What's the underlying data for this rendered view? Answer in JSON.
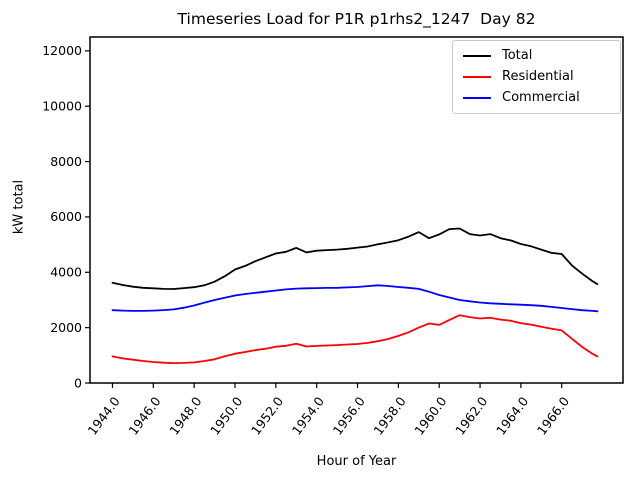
{
  "chart_data": {
    "type": "line",
    "title": "Timeseries Load for P1R p1rhs2_1247  Day 82",
    "xlabel": "Hour of Year",
    "ylabel": "kW total",
    "legend_position": "upper right",
    "grid": false,
    "xlim": [
      1942.9,
      1969.0
    ],
    "ylim": [
      0,
      12500
    ],
    "x_ticks": [
      1944,
      1946,
      1948,
      1950,
      1952,
      1954,
      1956,
      1958,
      1960,
      1962,
      1964,
      1966
    ],
    "x_tick_labels": [
      "1944.0",
      "1946.0",
      "1948.0",
      "1950.0",
      "1952.0",
      "1954.0",
      "1956.0",
      "1958.0",
      "1960.0",
      "1962.0",
      "1964.0",
      "1966.0"
    ],
    "y_ticks": [
      0,
      2000,
      4000,
      6000,
      8000,
      10000,
      12000
    ],
    "y_tick_labels": [
      "0",
      "2000",
      "4000",
      "6000",
      "8000",
      "10000",
      "12000"
    ],
    "x": [
      1944.0,
      1944.5,
      1945.0,
      1945.5,
      1946.0,
      1946.5,
      1947.0,
      1947.5,
      1948.0,
      1948.5,
      1949.0,
      1949.5,
      1950.0,
      1950.5,
      1951.0,
      1951.5,
      1952.0,
      1952.5,
      1953.0,
      1953.5,
      1954.0,
      1954.5,
      1955.0,
      1955.5,
      1956.0,
      1956.5,
      1957.0,
      1957.5,
      1958.0,
      1958.5,
      1959.0,
      1959.5,
      1960.0,
      1960.5,
      1961.0,
      1961.5,
      1962.0,
      1962.5,
      1963.0,
      1963.5,
      1964.0,
      1964.5,
      1965.0,
      1965.5,
      1966.0,
      1966.5,
      1967.0,
      1967.5,
      1967.75
    ],
    "series": [
      {
        "name": "Total",
        "color": "#000000",
        "values": [
          3620,
          3540,
          3480,
          3440,
          3420,
          3400,
          3395,
          3430,
          3460,
          3530,
          3660,
          3860,
          4100,
          4230,
          4400,
          4540,
          4680,
          4740,
          4880,
          4720,
          4780,
          4800,
          4820,
          4850,
          4890,
          4930,
          5010,
          5080,
          5160,
          5290,
          5450,
          5230,
          5370,
          5560,
          5580,
          5380,
          5330,
          5380,
          5230,
          5150,
          5020,
          4940,
          4820,
          4700,
          4660,
          4250,
          3950,
          3680,
          3570
        ]
      },
      {
        "name": "Residential",
        "color": "#ff0000",
        "values": [
          960,
          890,
          840,
          795,
          760,
          735,
          720,
          725,
          745,
          795,
          855,
          965,
          1060,
          1120,
          1190,
          1240,
          1310,
          1345,
          1420,
          1320,
          1340,
          1355,
          1370,
          1390,
          1410,
          1450,
          1510,
          1590,
          1700,
          1830,
          2000,
          2150,
          2100,
          2280,
          2450,
          2380,
          2330,
          2360,
          2290,
          2250,
          2160,
          2110,
          2030,
          1960,
          1900,
          1600,
          1300,
          1060,
          960
        ]
      },
      {
        "name": "Commercial",
        "color": "#0000ff",
        "values": [
          2630,
          2615,
          2605,
          2605,
          2615,
          2635,
          2660,
          2720,
          2800,
          2905,
          3000,
          3080,
          3160,
          3215,
          3260,
          3300,
          3340,
          3380,
          3410,
          3420,
          3430,
          3435,
          3440,
          3455,
          3470,
          3500,
          3530,
          3505,
          3470,
          3440,
          3400,
          3300,
          3180,
          3090,
          3000,
          2950,
          2910,
          2880,
          2860,
          2845,
          2830,
          2810,
          2790,
          2750,
          2710,
          2670,
          2630,
          2605,
          2590
        ]
      }
    ]
  }
}
